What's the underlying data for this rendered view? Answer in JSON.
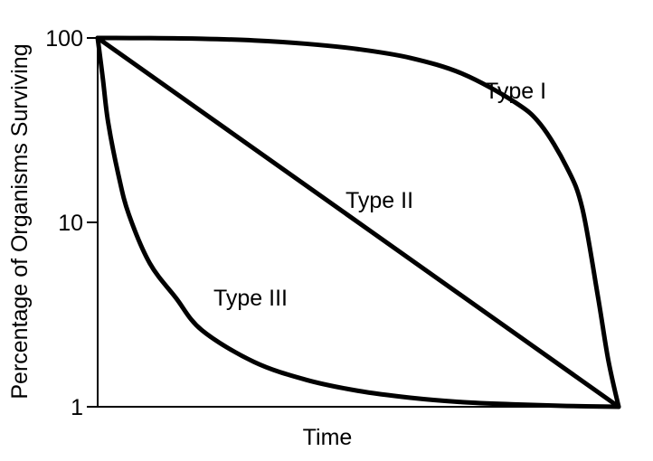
{
  "chart_data": {
    "type": "line",
    "title": "",
    "xlabel": "Time",
    "ylabel": "Percentage of Organisms Surviving",
    "y_scale": "log",
    "ylim": [
      1,
      100
    ],
    "xlim": [
      0,
      1
    ],
    "yticks": [
      "100",
      "10",
      "1"
    ],
    "series": [
      {
        "name": "Type I",
        "x": [
          0,
          0.1,
          0.2,
          0.3,
          0.4,
          0.5,
          0.6,
          0.7,
          0.8,
          0.85,
          0.9,
          0.93,
          0.96,
          0.98,
          1
        ],
        "y": [
          100,
          99.8,
          99,
          97,
          93,
          87,
          78,
          64,
          45,
          34,
          20,
          12,
          4,
          1.8,
          1
        ]
      },
      {
        "name": "Type II",
        "x": [
          0,
          1
        ],
        "y": [
          100,
          1
        ]
      },
      {
        "name": "Type III",
        "x": [
          0,
          0.01,
          0.02,
          0.04,
          0.06,
          0.1,
          0.15,
          0.2,
          0.3,
          0.4,
          0.5,
          0.6,
          0.7,
          0.8,
          0.9,
          1
        ],
        "y": [
          100,
          60,
          35,
          18,
          11,
          6,
          3.9,
          2.6,
          1.75,
          1.4,
          1.22,
          1.12,
          1.06,
          1.03,
          1.01,
          1
        ]
      }
    ]
  }
}
